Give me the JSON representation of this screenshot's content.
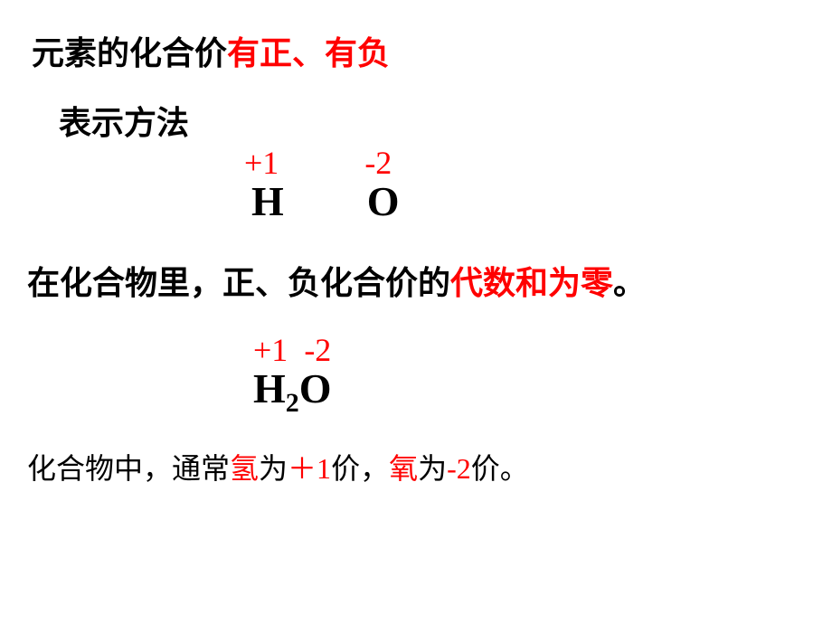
{
  "line1": {
    "part1": "元素的化合价",
    "part2": "有正、有负"
  },
  "line2": "表示方法",
  "valence1": {
    "h_val": "+1",
    "o_val": "-2",
    "h_sym": "H",
    "o_sym": "O"
  },
  "line3": {
    "part1": "在化合物里，正、负化合价的",
    "part2": "代数和为零",
    "part3": "。"
  },
  "valence2": {
    "h_val": "+1",
    "o_val": "-2",
    "formula_h": "H",
    "formula_sub": "2",
    "formula_o": "O"
  },
  "line4": {
    "part1": "化合物中，通常",
    "part2": "氢",
    "part3": "为",
    "part4": "＋1",
    "part5": "价，",
    "part6": "氧",
    "part7": "为",
    "part8": "-2",
    "part9": "价。"
  },
  "colors": {
    "text_black": "#000000",
    "text_red": "#ff0000",
    "background": "#ffffff"
  },
  "fonts": {
    "chinese": "SimSun",
    "element": "Times New Roman",
    "body_fontsize": 36,
    "element_fontsize": 46,
    "line4_fontsize": 32
  }
}
